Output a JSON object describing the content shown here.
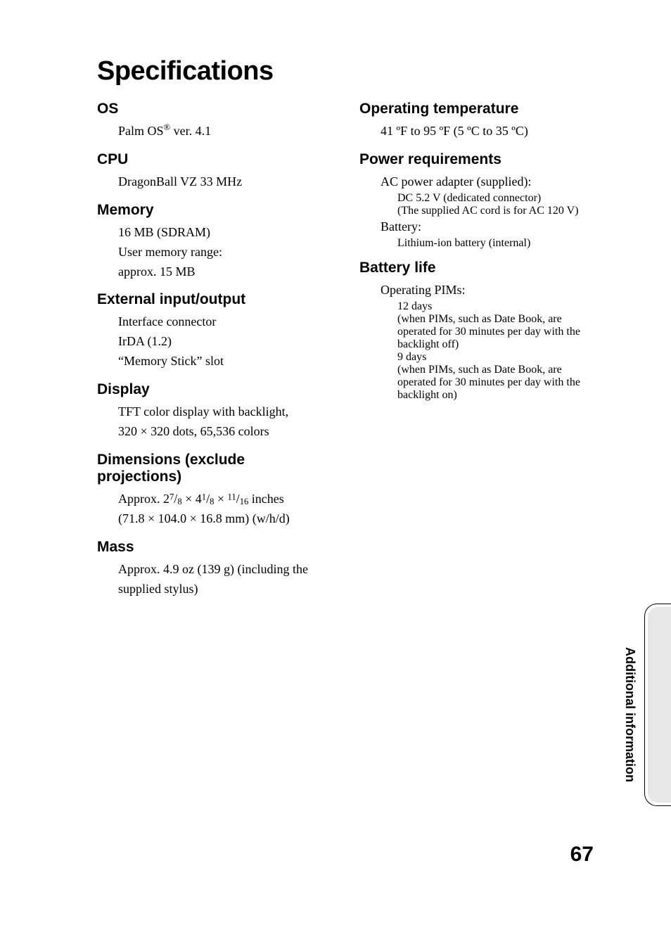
{
  "page": {
    "title": "Specifications",
    "number": "67",
    "side_label": "Additional information"
  },
  "left": {
    "os": {
      "head": "OS",
      "body": "Palm OS",
      "sup": "®",
      "tail": " ver. 4.1"
    },
    "cpu": {
      "head": "CPU",
      "body": "DragonBall VZ 33 MHz"
    },
    "memory": {
      "head": "Memory",
      "l1": "16 MB (SDRAM)",
      "l2": "User memory range:",
      "l3": "approx. 15 MB"
    },
    "io": {
      "head": "External input/output",
      "l1": "Interface connector",
      "l2": "IrDA (1.2)",
      "l3": "“Memory Stick” slot"
    },
    "display": {
      "head": "Display",
      "l1": "TFT color display with backlight,",
      "l2": "320 × 320 dots, 65,536 colors"
    },
    "dim": {
      "head": "Dimensions (exclude projections)",
      "prefix": "Approx. 2",
      "f1n": "7",
      "f1d": "8",
      "mid1": " × 4",
      "f2n": "1",
      "f2d": "8",
      "mid2": " × ",
      "f3n": "11",
      "f3d": "16",
      "suffix": " inches",
      "l2": "(71.8 × 104.0 × 16.8 mm) (w/h/d)"
    },
    "mass": {
      "head": "Mass",
      "l1": "Approx. 4.9 oz (139 g) (including the supplied stylus)"
    }
  },
  "right": {
    "temp": {
      "head": "Operating temperature",
      "body": "41 ºF to 95 ºF (5 ºC to 35 ºC)"
    },
    "power": {
      "head": "Power requirements",
      "l1": "AC power adapter (supplied):",
      "s1": "DC 5.2 V (dedicated connector)",
      "s2": "(The supplied AC cord is for AC 120 V)",
      "l2": "Battery:",
      "s3": "Lithium-ion battery (internal)"
    },
    "battery": {
      "head": "Battery life",
      "l1": "Operating PIMs:",
      "s1": "12 days",
      "s2": "(when PIMs, such as Date Book, are operated for 30 minutes per day with the backlight off)",
      "s3": "9 days",
      "s4": "(when PIMs, such as Date Book, are operated for 30 minutes per day with the backlight on)"
    }
  }
}
